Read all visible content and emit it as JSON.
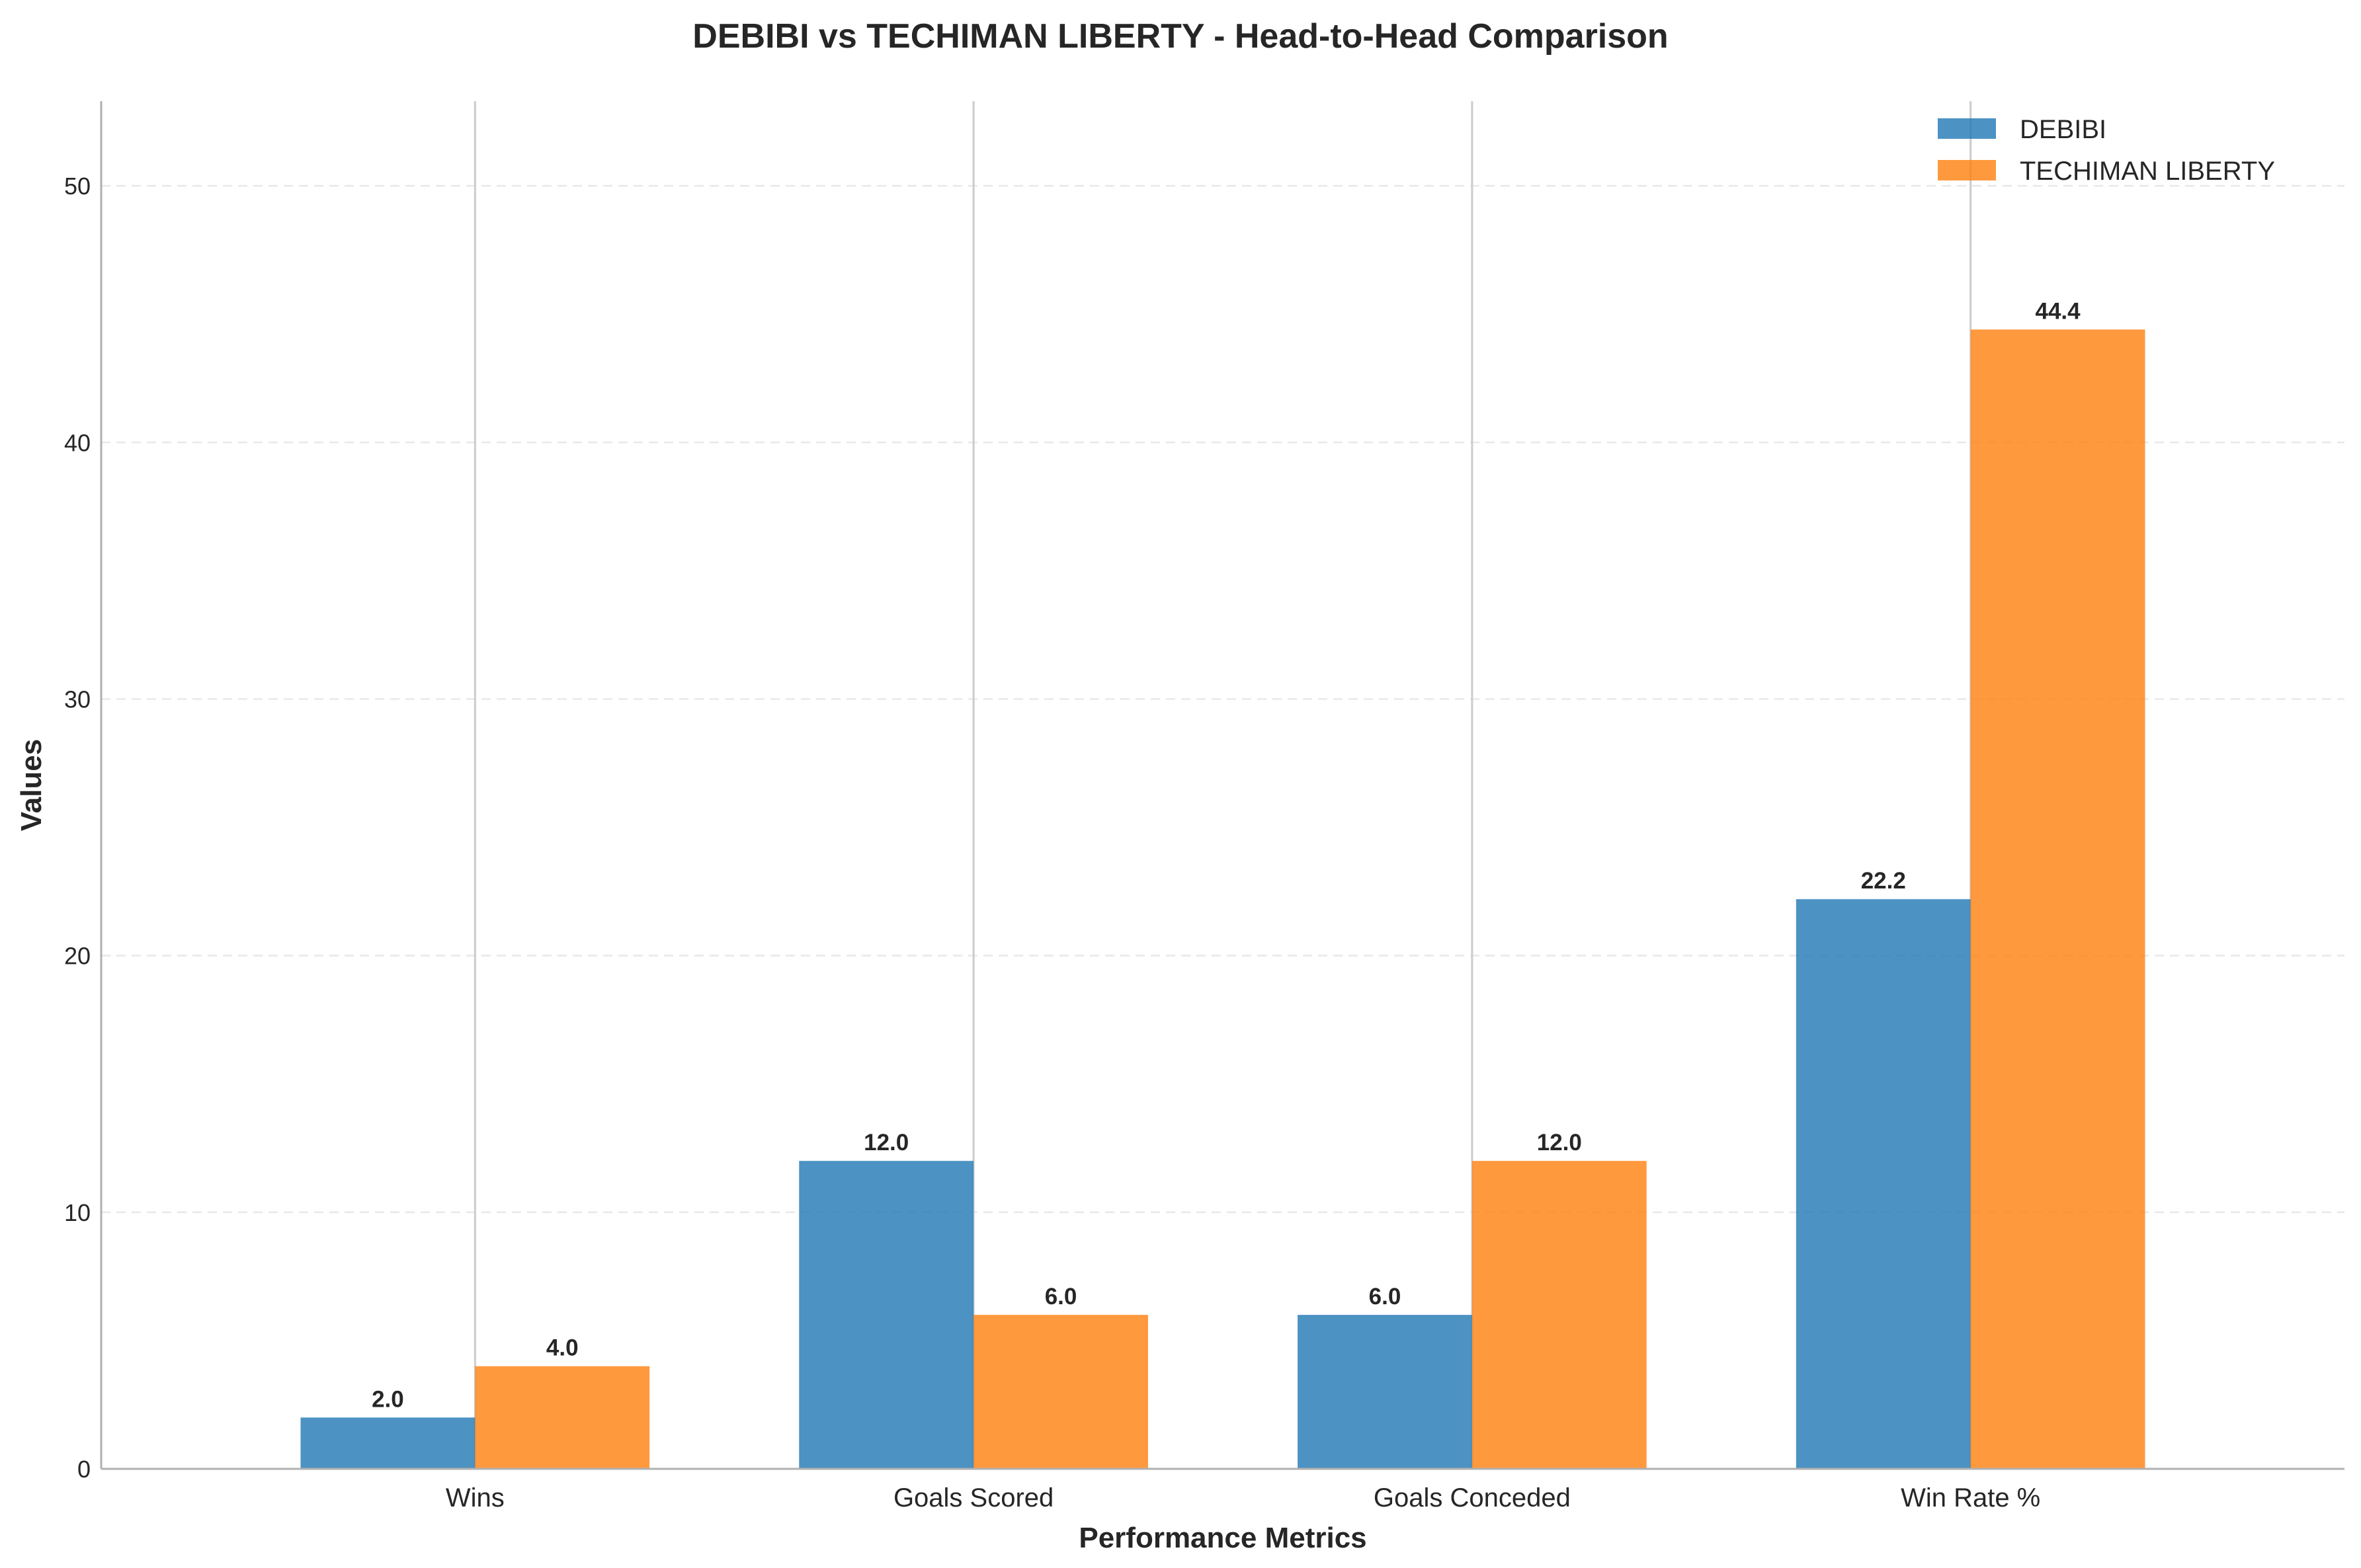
{
  "chart_data": {
    "type": "bar",
    "title": "DEBIBI vs TECHIMAN LIBERTY - Head-to-Head Comparison",
    "xlabel": "Performance Metrics",
    "ylabel": "Values",
    "categories": [
      "Wins",
      "Goals Scored",
      "Goals Conceded",
      "Win Rate %"
    ],
    "series": [
      {
        "name": "DEBIBI",
        "color": "#1f77b4",
        "values": [
          2.0,
          12.0,
          6.0,
          22.2
        ]
      },
      {
        "name": "TECHIMAN LIBERTY",
        "color": "#ff7f0e",
        "values": [
          4.0,
          6.0,
          12.0,
          44.4
        ]
      }
    ],
    "ylim": [
      0,
      53.3
    ],
    "yticks": [
      0,
      10,
      20,
      30,
      40,
      50
    ],
    "value_format": "0.0",
    "grid": {
      "y": true,
      "y_style": "dashed",
      "x": true,
      "x_style": "solid"
    },
    "legend": "top-right"
  }
}
